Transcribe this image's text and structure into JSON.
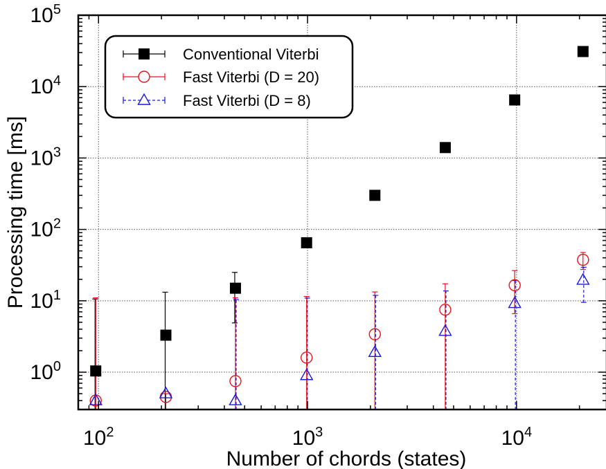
{
  "chart_data": {
    "type": "scatter",
    "title": "",
    "xlabel": "Number of chords (states)",
    "ylabel": "Processing time [ms]",
    "xscale": "log",
    "yscale": "log",
    "xlim": [
      80,
      27000
    ],
    "ylim": [
      0.3,
      100000
    ],
    "grid": true,
    "legend_position": "top-left",
    "x_ticks": [
      {
        "value": 100,
        "base": "10",
        "exp": "2"
      },
      {
        "value": 1000,
        "base": "10",
        "exp": "3"
      },
      {
        "value": 10000,
        "base": "10",
        "exp": "4"
      }
    ],
    "y_ticks": [
      {
        "value": 1,
        "base": "10",
        "exp": "0"
      },
      {
        "value": 10,
        "base": "10",
        "exp": "1"
      },
      {
        "value": 100,
        "base": "10",
        "exp": "2"
      },
      {
        "value": 1000,
        "base": "10",
        "exp": "3"
      },
      {
        "value": 10000,
        "base": "10",
        "exp": "4"
      },
      {
        "value": 100000,
        "base": "10",
        "exp": "5"
      }
    ],
    "series": [
      {
        "name": "Conventional Viterbi",
        "color": "#000000",
        "marker": "square-filled",
        "line": "solid",
        "points": [
          {
            "x": 97,
            "y": 1.04,
            "err_lo": 0.3,
            "err_hi": 10.6
          },
          {
            "x": 210,
            "y": 3.3,
            "err_lo": 0.3,
            "err_hi": 13.2
          },
          {
            "x": 452,
            "y": 15,
            "err_lo": 4.9,
            "err_hi": 25
          },
          {
            "x": 990,
            "y": 65
          },
          {
            "x": 2100,
            "y": 300
          },
          {
            "x": 4560,
            "y": 1400
          },
          {
            "x": 9800,
            "y": 6500
          },
          {
            "x": 20800,
            "y": 31000
          }
        ]
      },
      {
        "name": "Fast Viterbi (D = 20)",
        "color": "#e8101a",
        "marker": "circle-open",
        "line": "solid",
        "points": [
          {
            "x": 97,
            "y": 0.4,
            "err_lo": 0.3,
            "err_hi": 11
          },
          {
            "x": 210,
            "y": 0.45,
            "err_lo": 0.3,
            "err_hi": 0.5
          },
          {
            "x": 452,
            "y": 0.75,
            "err_lo": 0.3,
            "err_hi": 11
          },
          {
            "x": 990,
            "y": 1.6,
            "err_lo": 0.3,
            "err_hi": 11.5
          },
          {
            "x": 2100,
            "y": 3.4,
            "err_lo": 0.3,
            "err_hi": 13.3
          },
          {
            "x": 4560,
            "y": 7.5,
            "err_lo": 0.3,
            "err_hi": 17.3
          },
          {
            "x": 9800,
            "y": 16.5,
            "err_lo": 6.6,
            "err_hi": 26.5
          },
          {
            "x": 20800,
            "y": 37.5,
            "err_lo": 27.5,
            "err_hi": 47.5
          }
        ]
      },
      {
        "name": "Fast Viterbi (D = 8)",
        "color": "#1818d8",
        "marker": "triangle-open",
        "line": "dashed",
        "points": [
          {
            "x": 97,
            "y": 0.4
          },
          {
            "x": 210,
            "y": 0.5
          },
          {
            "x": 452,
            "y": 0.4,
            "err_lo": 0.3,
            "err_hi": 10.4
          },
          {
            "x": 990,
            "y": 0.9,
            "err_lo": 0.3,
            "err_hi": 10.9
          },
          {
            "x": 2100,
            "y": 1.9,
            "err_lo": 0.3,
            "err_hi": 11.9
          },
          {
            "x": 4560,
            "y": 3.75,
            "err_lo": 0.3,
            "err_hi": 13.75
          },
          {
            "x": 9800,
            "y": 9.2,
            "err_lo": 0.3,
            "err_hi": 19.2
          },
          {
            "x": 20800,
            "y": 19.5,
            "err_lo": 9.5,
            "err_hi": 29.5
          }
        ]
      }
    ]
  }
}
